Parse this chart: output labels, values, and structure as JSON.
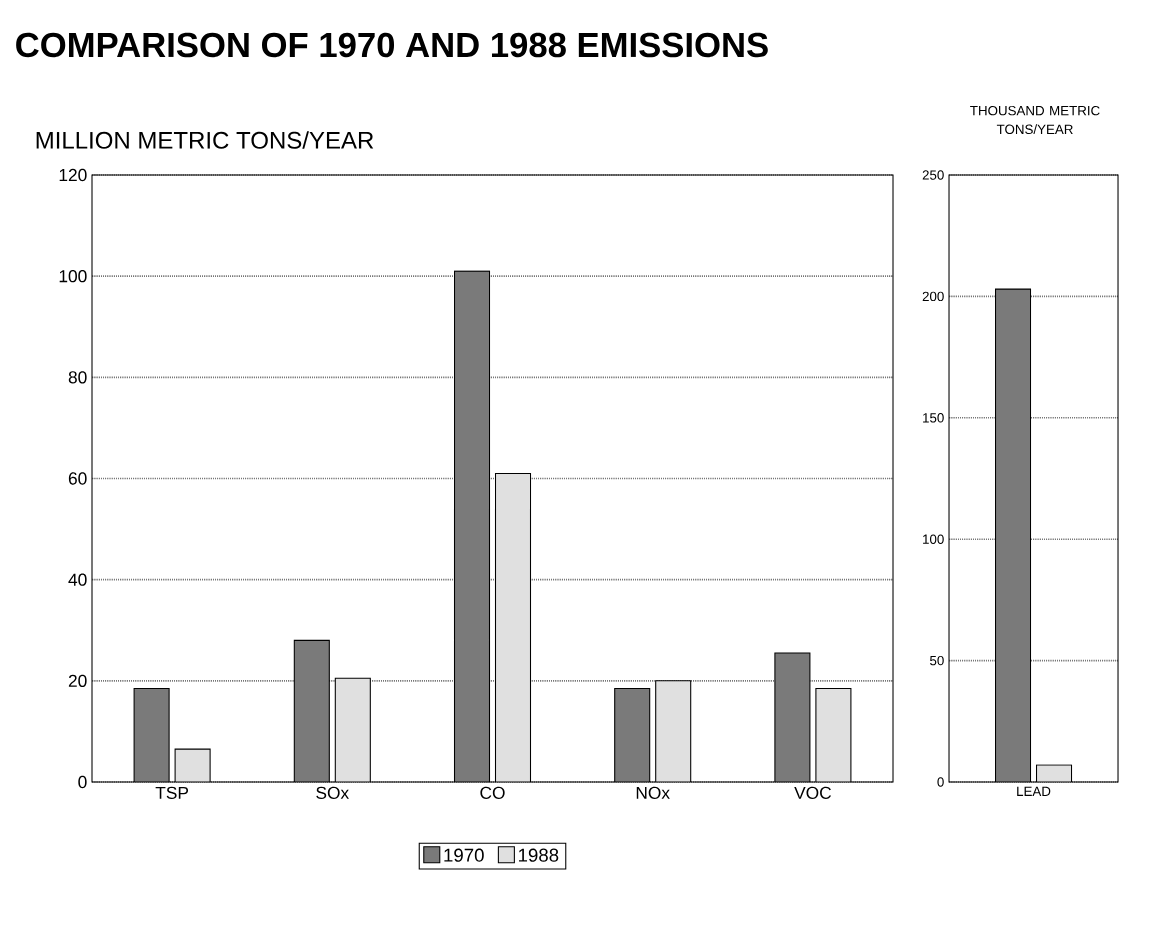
{
  "chart_data": [
    {
      "type": "bar",
      "title": "COMPARISON OF 1970 AND 1988 EMISSIONS",
      "ylabel": "MILLION METRIC TONS/YEAR",
      "categories": [
        "TSP",
        "SOx",
        "CO",
        "NOx",
        "VOC"
      ],
      "series": [
        {
          "name": "1970",
          "color": "#7a7a7a",
          "values": [
            18.5,
            28,
            101,
            18.5,
            25.5
          ]
        },
        {
          "name": "1988",
          "color": "#e0e0e0",
          "values": [
            6.5,
            20.5,
            61,
            20,
            18.5
          ]
        }
      ],
      "ylim": [
        0,
        120
      ],
      "yticks": [
        0,
        20,
        40,
        60,
        80,
        100,
        120
      ],
      "grid": "y",
      "legend": "bottom"
    },
    {
      "type": "bar",
      "ylabel": "THOUSAND METRIC TONS/YEAR",
      "categories": [
        "LEAD"
      ],
      "series": [
        {
          "color": "#7a7a7a",
          "values": [
            203
          ]
        },
        {
          "color": "#e0e0e0",
          "values": [
            7
          ]
        }
      ],
      "ylim": [
        0,
        250
      ],
      "yticks": [
        0,
        50,
        100,
        150,
        200,
        250
      ],
      "grid": "y"
    }
  ]
}
